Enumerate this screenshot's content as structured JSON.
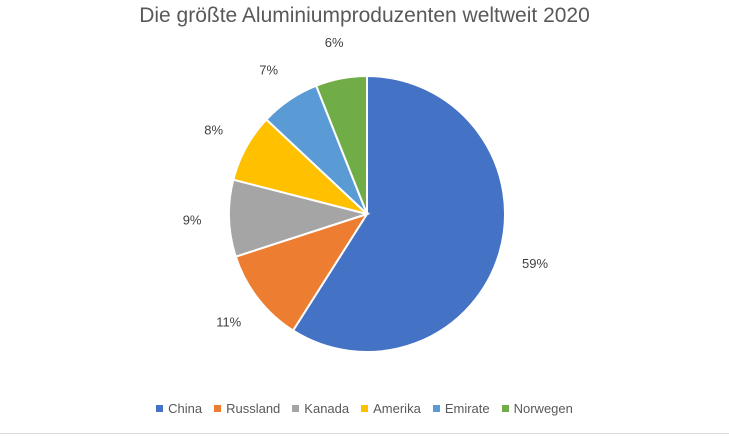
{
  "chart_data": {
    "type": "pie",
    "title": "Die größte Aluminiumproduzenten weltweit 2020",
    "categories": [
      "China",
      "Russland",
      "Kanada",
      "Amerika",
      "Emirate",
      "Norwegen"
    ],
    "values": [
      59,
      11,
      9,
      8,
      7,
      6
    ],
    "labels": [
      "59%",
      "11%",
      "9%",
      "8%",
      "7%",
      "6%"
    ],
    "colors": [
      "#4472c4",
      "#ed7d31",
      "#a5a5a5",
      "#ffc000",
      "#5b9bd5",
      "#70ad47"
    ],
    "legend_position": "bottom",
    "start_angle_deg": 0,
    "direction": "clockwise"
  }
}
